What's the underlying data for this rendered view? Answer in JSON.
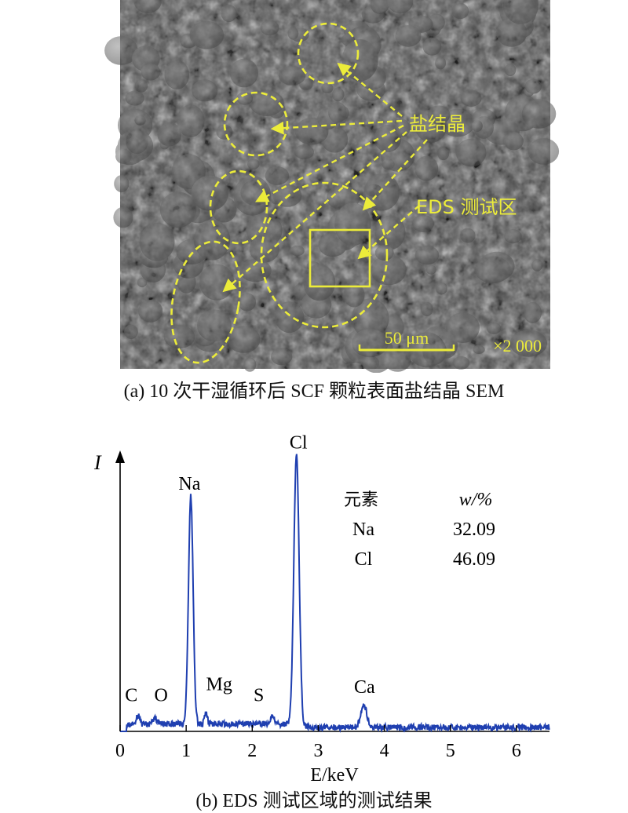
{
  "figure_a": {
    "caption": "(a) 10 次干湿循环后 SCF 颗粒表面盐结晶 SEM",
    "annotation_salt": "盐结晶",
    "annotation_eds": "EDS 测试区",
    "scale_bar": "50 μm",
    "magnification": "×2 000",
    "annotation_color": "#ecec3a",
    "background_color": "#4a4a4a"
  },
  "figure_b": {
    "caption": "(b) EDS 测试区域的测试结果",
    "table": {
      "headers": [
        "元素",
        "w/%"
      ],
      "rows": [
        [
          "Na",
          "32.09"
        ],
        [
          "Cl",
          "46.09"
        ]
      ]
    }
  },
  "chart_data": {
    "type": "line",
    "xlabel": "E/keV",
    "ylabel": "I",
    "xlim": [
      0,
      6.5
    ],
    "ylim": [
      0,
      100
    ],
    "x_ticks": [
      0,
      1,
      2,
      3,
      4,
      5,
      6
    ],
    "line_color": "#1f3fb0",
    "peaks": [
      {
        "element": "C",
        "x": 0.27,
        "y": 3
      },
      {
        "element": "O",
        "x": 0.53,
        "y": 2
      },
      {
        "element": "Na",
        "x": 1.07,
        "y": 83
      },
      {
        "element": "Mg",
        "x": 1.3,
        "y": 4
      },
      {
        "element": "S",
        "x": 2.31,
        "y": 3
      },
      {
        "element": "Cl",
        "x": 2.67,
        "y": 100
      },
      {
        "element": "Ca",
        "x": 3.69,
        "y": 8
      }
    ],
    "peak_labels": [
      {
        "text": "C",
        "x": 0.17,
        "y": 11
      },
      {
        "text": "O",
        "x": 0.62,
        "y": 11
      },
      {
        "text": "Na",
        "x": 1.05,
        "y": 88
      },
      {
        "text": "Mg",
        "x": 1.5,
        "y": 15
      },
      {
        "text": "S",
        "x": 2.1,
        "y": 11
      },
      {
        "text": "Cl",
        "x": 2.7,
        "y": 103
      },
      {
        "text": "Ca",
        "x": 3.7,
        "y": 14
      }
    ]
  }
}
